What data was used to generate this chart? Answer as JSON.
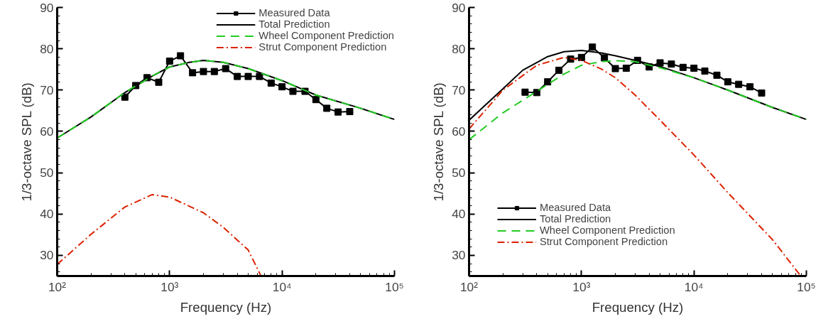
{
  "chart_data": [
    {
      "type": "line",
      "xlabel": "Frequency (Hz)",
      "ylabel": "1/3-octave SPL (dB)",
      "log": "x",
      "xlim": [
        100,
        100000
      ],
      "ylim": [
        25,
        90
      ],
      "xticks": [
        {
          "value": 100,
          "label": "10²"
        },
        {
          "value": 1000,
          "label": "10³"
        },
        {
          "value": 10000,
          "label": "10⁴"
        },
        {
          "value": 100000,
          "label": "10⁵"
        }
      ],
      "yticks": [
        30,
        40,
        50,
        60,
        70,
        80,
        90
      ],
      "grid": false,
      "legend": "top right",
      "series": [
        {
          "name": "Measured Data",
          "color": "#000000",
          "marker": "square",
          "line_style": "solid",
          "x": [
            400,
            500,
            630,
            800,
            1000,
            1250,
            1600,
            2000,
            2500,
            3150,
            4000,
            5000,
            6300,
            8000,
            10000,
            12500,
            16000,
            20000,
            25000,
            31500,
            40000
          ],
          "values": [
            68.3,
            71.1,
            73.0,
            71.9,
            77.0,
            78.3,
            74.2,
            74.5,
            74.5,
            75.2,
            73.3,
            73.3,
            73.3,
            71.7,
            70.8,
            69.7,
            69.7,
            67.7,
            65.6,
            64.7,
            64.8
          ]
        },
        {
          "name": "Total Prediction",
          "color": "#000000",
          "marker": "none",
          "line_style": "solid",
          "x": [
            100,
            200,
            400,
            700,
            1000,
            1500,
            2000,
            3000,
            5000,
            10000,
            20000,
            50000,
            100000
          ],
          "values": [
            58.4,
            63.5,
            69.4,
            73.4,
            75.6,
            76.7,
            77.2,
            76.7,
            75.2,
            72.3,
            68.8,
            65.6,
            62.9
          ]
        },
        {
          "name": "Wheel Component Prediction",
          "color": "#22cc22",
          "marker": "none",
          "line_style": "dashed",
          "x": [
            100,
            200,
            400,
            700,
            1000,
            1500,
            2000,
            3000,
            5000,
            10000,
            20000,
            50000,
            100000
          ],
          "values": [
            58.4,
            63.5,
            69.4,
            73.4,
            75.6,
            76.7,
            77.2,
            76.7,
            75.2,
            72.3,
            68.8,
            65.6,
            62.9
          ]
        },
        {
          "name": "Strut Component Prediction",
          "color": "#dd2200",
          "marker": "none",
          "line_style": "dashdot",
          "x": [
            100,
            200,
            400,
            700,
            1000,
            2000,
            3000,
            5000,
            6500
          ],
          "values": [
            27.8,
            35.1,
            41.7,
            44.7,
            44.1,
            40.3,
            36.8,
            31.3,
            25.0
          ]
        }
      ]
    },
    {
      "type": "line",
      "xlabel": "Frequency (Hz)",
      "ylabel": "1/3-octave SPL (dB)",
      "log": "x",
      "xlim": [
        100,
        100000
      ],
      "ylim": [
        25,
        90
      ],
      "xticks": [
        {
          "value": 100,
          "label": "10²"
        },
        {
          "value": 1000,
          "label": "10³"
        },
        {
          "value": 10000,
          "label": "10⁴"
        },
        {
          "value": 100000,
          "label": "10⁵"
        }
      ],
      "yticks": [
        30,
        40,
        50,
        60,
        70,
        80,
        90
      ],
      "grid": false,
      "legend": "bottom left",
      "series": [
        {
          "name": "Measured Data",
          "color": "#000000",
          "marker": "square",
          "line_style": "solid",
          "x": [
            315,
            400,
            500,
            630,
            800,
            1000,
            1250,
            1600,
            2000,
            2500,
            3150,
            4000,
            5000,
            6300,
            8000,
            10000,
            12500,
            16000,
            20000,
            25000,
            31500,
            40000
          ],
          "values": [
            69.5,
            69.4,
            72.0,
            74.8,
            77.5,
            77.9,
            80.4,
            77.8,
            75.2,
            75.3,
            77.2,
            75.6,
            76.6,
            76.3,
            75.5,
            75.3,
            74.6,
            73.6,
            72.0,
            71.4,
            70.8,
            69.3
          ]
        },
        {
          "name": "Total Prediction",
          "color": "#000000",
          "marker": "none",
          "line_style": "solid",
          "x": [
            100,
            200,
            300,
            500,
            700,
            1000,
            1500,
            2000,
            3000,
            5000,
            10000,
            20000,
            50000,
            100000
          ],
          "values": [
            62.7,
            70.3,
            74.8,
            78.1,
            79.3,
            79.6,
            79.0,
            78.3,
            77.2,
            75.7,
            73.0,
            70.0,
            65.8,
            62.9
          ]
        },
        {
          "name": "Wheel Component Prediction",
          "color": "#22cc22",
          "marker": "none",
          "line_style": "dashed",
          "x": [
            100,
            200,
            400,
            700,
            1000,
            1500,
            2000,
            3000,
            5000,
            10000,
            20000,
            50000,
            100000
          ],
          "values": [
            58.0,
            64.5,
            69.7,
            73.9,
            76.0,
            76.9,
            77.1,
            76.9,
            75.4,
            73.0,
            70.0,
            65.8,
            62.9
          ]
        },
        {
          "name": "Strut Component Prediction",
          "color": "#dd2200",
          "marker": "none",
          "line_style": "dashdot",
          "x": [
            100,
            200,
            400,
            700,
            1000,
            1500,
            2000,
            3000,
            5000,
            10000,
            20000,
            50000,
            88000
          ],
          "values": [
            60.6,
            70.0,
            76.0,
            77.9,
            77.2,
            75.1,
            73.0,
            68.8,
            62.7,
            54.3,
            45.2,
            33.8,
            25.2
          ]
        }
      ]
    }
  ]
}
